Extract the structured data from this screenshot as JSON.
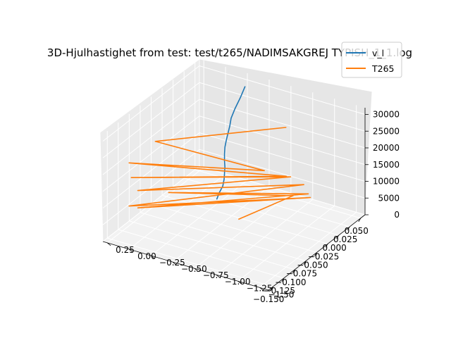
{
  "chart_data": {
    "type": "line",
    "projection": "3d",
    "title": "3D-Hjulhastighet from test: test/t265/NADIMSAKGREJ TYPISH_1_1.log",
    "xlabel": "",
    "ylabel": "",
    "zlabel": "",
    "x_ticks": [
      "−0.150",
      "−0.125",
      "−0.100",
      "−0.075",
      "−0.050",
      "−0.025",
      "0.000",
      "0.025",
      "0.050"
    ],
    "y_ticks": [
      "−1.50",
      "−1.25",
      "−1.00",
      "−0.75",
      "−0.50",
      "−0.25",
      "0.00",
      "0.25"
    ],
    "z_ticks": [
      "0",
      "5000",
      "10000",
      "15000",
      "20000",
      "25000",
      "30000"
    ],
    "xlim": [
      -0.16,
      0.06
    ],
    "ylim": [
      -1.6,
      0.3
    ],
    "zlim": [
      0,
      32000
    ],
    "grid": true,
    "legend_position": "top-right",
    "series": [
      {
        "name": "v_l",
        "color": "#1f77b4",
        "points": [
          [
            0.0,
            -0.2,
            0
          ],
          [
            0.002,
            -0.22,
            2000
          ],
          [
            0.004,
            -0.25,
            4000
          ],
          [
            0.005,
            -0.26,
            6000
          ],
          [
            0.004,
            -0.27,
            8000
          ],
          [
            0.003,
            -0.28,
            10000
          ],
          [
            0.002,
            -0.28,
            12000
          ],
          [
            0.002,
            -0.28,
            14000
          ],
          [
            0.003,
            -0.28,
            16000
          ],
          [
            0.004,
            -0.29,
            18000
          ],
          [
            0.006,
            -0.3,
            20000
          ],
          [
            0.008,
            -0.31,
            22000
          ],
          [
            0.011,
            -0.31,
            24000
          ],
          [
            0.02,
            -0.31,
            26000
          ],
          [
            0.032,
            -0.31,
            28000
          ],
          [
            0.045,
            -0.3,
            30000
          ]
        ]
      },
      {
        "name": "T265",
        "color": "#ff7f0e",
        "points": [
          [
            -0.02,
            -1.1,
            30500
          ],
          [
            -0.11,
            -0.05,
            27500
          ],
          [
            -0.09,
            -1.2,
            25500
          ],
          [
            -0.14,
            0.1,
            23000
          ],
          [
            -0.06,
            -1.3,
            21500
          ],
          [
            -0.145,
            0.05,
            19500
          ],
          [
            -0.03,
            -1.2,
            17500
          ],
          [
            -0.14,
            0.0,
            15500
          ],
          [
            -0.01,
            -1.25,
            13500
          ],
          [
            -0.15,
            0.05,
            11500
          ],
          [
            -0.005,
            -1.3,
            9500
          ],
          [
            -0.12,
            0.1,
            7500
          ],
          [
            0.03,
            -1.1,
            5500
          ],
          [
            -0.04,
            0.15,
            3500
          ],
          [
            0.045,
            -0.85,
            1500
          ],
          [
            -0.03,
            -0.6,
            200
          ]
        ]
      }
    ]
  }
}
